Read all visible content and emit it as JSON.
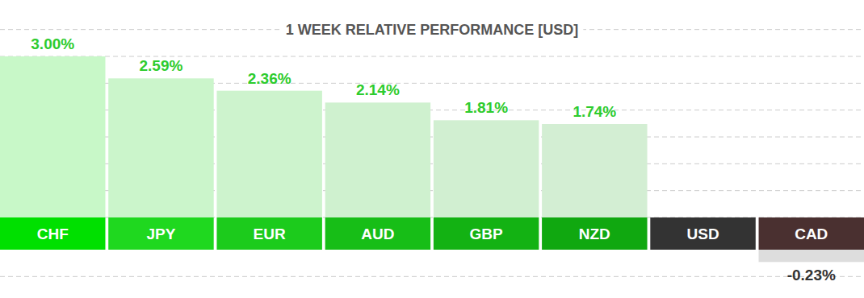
{
  "chart_data": {
    "type": "bar",
    "title": "1 WEEK RELATIVE PERFORMANCE [USD]",
    "categories": [
      "CHF",
      "JPY",
      "EUR",
      "AUD",
      "GBP",
      "NZD",
      "USD",
      "CAD"
    ],
    "values": [
      3.0,
      2.59,
      2.36,
      2.14,
      1.81,
      1.74,
      0,
      -0.23
    ],
    "value_labels": [
      "3.00%",
      "2.59%",
      "2.36%",
      "2.14%",
      "1.81%",
      "1.74%",
      null,
      "-0.23%"
    ],
    "colors": [
      "#c8f8c8",
      "#cbf5cb",
      "#cdf3cd",
      "#cff1cf",
      "#d1efd1",
      "#d3eed3",
      "#ffffff",
      "#dddddd"
    ],
    "ylim": [
      -0.5,
      3.5
    ],
    "yticks": [
      -0.5,
      0,
      0.5,
      1,
      1.5,
      2,
      2.5,
      3,
      3.5
    ],
    "grid": true,
    "data_labels": true,
    "tick_labels": false
  }
}
